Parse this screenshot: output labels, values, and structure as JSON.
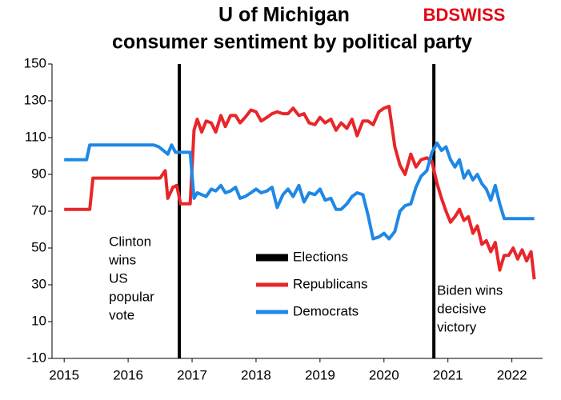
{
  "chart_data": {
    "type": "line",
    "title_lines": [
      "U of Michigan",
      "consumer sentiment by political party"
    ],
    "brand": "BDSWISS",
    "xlim": [
      2014.81,
      2022.48
    ],
    "xticks": [
      2015,
      2016,
      2017,
      2018,
      2019,
      2020,
      2021,
      2022
    ],
    "ylim": [
      -10,
      150
    ],
    "yticks": [
      -10,
      10,
      30,
      50,
      70,
      90,
      110,
      130,
      150
    ],
    "grid": false,
    "elections": {
      "name": "Elections",
      "color": "#000000",
      "x": [
        2016.8,
        2020.78
      ]
    },
    "series": [
      {
        "name": "Republicans",
        "color": "#e8262a",
        "x": [
          2015.0,
          2015.4,
          2015.45,
          2016.5,
          2016.58,
          2016.62,
          2016.7,
          2016.76,
          2016.82,
          2016.97,
          2017.03,
          2017.08,
          2017.15,
          2017.22,
          2017.3,
          2017.37,
          2017.45,
          2017.52,
          2017.6,
          2017.68,
          2017.75,
          2017.83,
          2017.92,
          2018.0,
          2018.08,
          2018.17,
          2018.25,
          2018.33,
          2018.42,
          2018.5,
          2018.58,
          2018.67,
          2018.75,
          2018.83,
          2018.92,
          2019.0,
          2019.08,
          2019.17,
          2019.25,
          2019.33,
          2019.42,
          2019.5,
          2019.58,
          2019.67,
          2019.75,
          2019.83,
          2019.92,
          2020.0,
          2020.08,
          2020.17,
          2020.25,
          2020.33,
          2020.42,
          2020.5,
          2020.58,
          2020.67,
          2020.75,
          2020.83,
          2020.9,
          2020.97,
          2021.04,
          2021.11,
          2021.18,
          2021.25,
          2021.32,
          2021.39,
          2021.46,
          2021.53,
          2021.6,
          2021.67,
          2021.74,
          2021.81,
          2021.88,
          2021.95,
          2022.02,
          2022.09,
          2022.16,
          2022.23,
          2022.3,
          2022.35
        ],
        "values": [
          71,
          71,
          88,
          88,
          92,
          77,
          83,
          84,
          74,
          74,
          114,
          120,
          113,
          119,
          118,
          113,
          122,
          116,
          122,
          122,
          118,
          121,
          125,
          124,
          119,
          121,
          123,
          124,
          123,
          123,
          126,
          122,
          123,
          118,
          117,
          121,
          118,
          120,
          114,
          118,
          115,
          120,
          111,
          119,
          119,
          117,
          124,
          126,
          127,
          105,
          95,
          90,
          101,
          94,
          98,
          99,
          97,
          85,
          77,
          70,
          64,
          67,
          71,
          65,
          67,
          58,
          62,
          52,
          54,
          48,
          53,
          38,
          46,
          46,
          50,
          44,
          49,
          43,
          48,
          33
        ]
      },
      {
        "name": "Democrats",
        "color": "#1e88e5",
        "x": [
          2015.0,
          2015.35,
          2015.4,
          2016.4,
          2016.48,
          2016.55,
          2016.62,
          2016.68,
          2016.74,
          2016.97,
          2017.03,
          2017.08,
          2017.15,
          2017.22,
          2017.3,
          2017.37,
          2017.45,
          2017.52,
          2017.6,
          2017.68,
          2017.75,
          2017.83,
          2017.92,
          2018.0,
          2018.08,
          2018.17,
          2018.25,
          2018.33,
          2018.42,
          2018.5,
          2018.58,
          2018.67,
          2018.75,
          2018.83,
          2018.92,
          2019.0,
          2019.08,
          2019.17,
          2019.25,
          2019.33,
          2019.42,
          2019.5,
          2019.58,
          2019.67,
          2019.75,
          2019.83,
          2019.92,
          2020.0,
          2020.08,
          2020.17,
          2020.25,
          2020.33,
          2020.42,
          2020.5,
          2020.58,
          2020.67,
          2020.75,
          2020.83,
          2020.9,
          2020.97,
          2021.04,
          2021.11,
          2021.18,
          2021.25,
          2021.32,
          2021.39,
          2021.46,
          2021.53,
          2021.6,
          2021.67,
          2021.74,
          2021.81,
          2021.88,
          2021.95,
          2022.02,
          2022.09,
          2022.16,
          2022.23,
          2022.3,
          2022.35
        ],
        "values": [
          98,
          98,
          106,
          106,
          105,
          103,
          101,
          106,
          102,
          102,
          77,
          80,
          79,
          78,
          82,
          81,
          84,
          80,
          81,
          83,
          77,
          78,
          80,
          82,
          80,
          81,
          83,
          72,
          79,
          82,
          78,
          84,
          75,
          80,
          79,
          82,
          76,
          77,
          71,
          71,
          74,
          78,
          80,
          79,
          68,
          55,
          56,
          58,
          55,
          59,
          70,
          73,
          74,
          83,
          89,
          92,
          102,
          107,
          103,
          105,
          98,
          94,
          98,
          88,
          92,
          87,
          90,
          85,
          82,
          76,
          84,
          74,
          66,
          66,
          66,
          66,
          66,
          66,
          66,
          66
        ]
      }
    ],
    "annotations": [
      {
        "x": 2015.7,
        "lines": [
          "Clinton",
          "wins",
          "US",
          "popular",
          "vote"
        ]
      },
      {
        "x": 2020.83,
        "lines": [
          "Biden wins",
          "decisive",
          "victory"
        ]
      }
    ]
  }
}
